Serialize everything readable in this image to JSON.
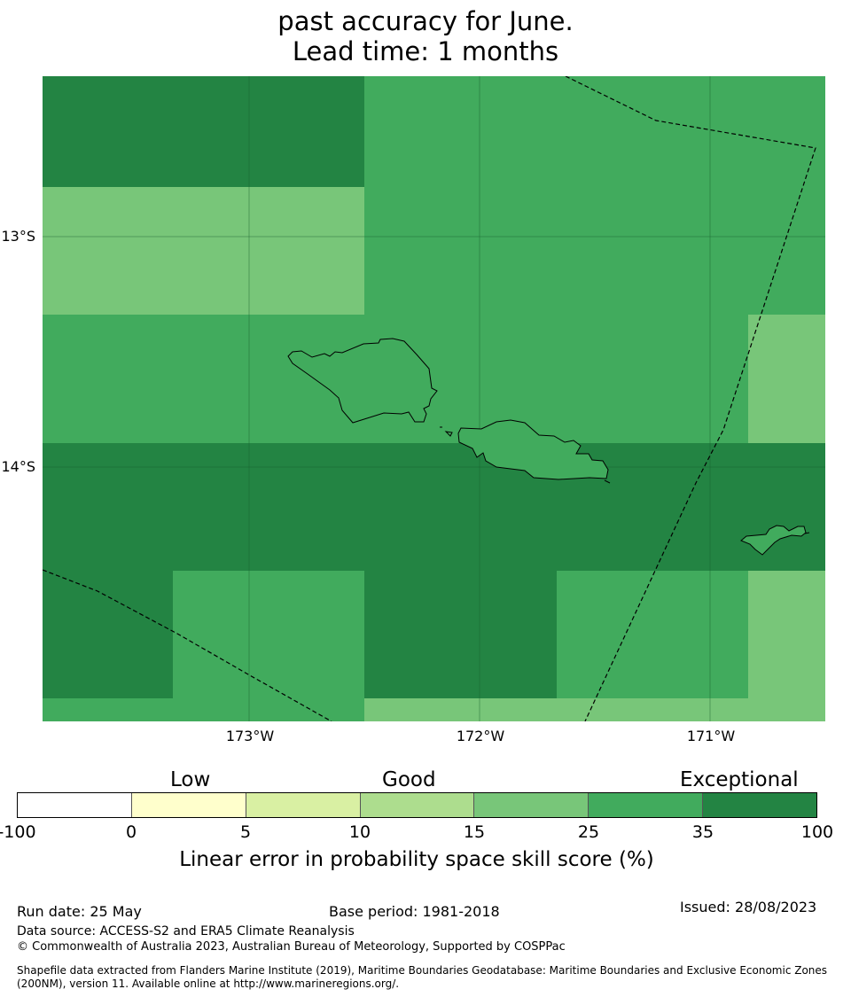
{
  "title": {
    "line1": "",
    "line2": "past accuracy for June.",
    "line3": "Lead time: 1 months"
  },
  "map": {
    "lat_labels": [
      "13°S",
      "14°S"
    ],
    "lon_labels": [
      "173°W",
      "172°W",
      "171°W"
    ],
    "colors": {
      "fill_25_35": "#41ab5d",
      "fill_35_100": "#238443",
      "fill_15_25": "#78c679",
      "coast": "#000000",
      "eez_boundary": "#000000"
    }
  },
  "legend": {
    "categories": [
      "Low",
      "Good",
      "Exceptional"
    ],
    "ticks": [
      "-100",
      "0",
      "5",
      "10",
      "15",
      "25",
      "35",
      "100"
    ],
    "colors": [
      "#ffffff",
      "#ffffcc",
      "#d9f0a3",
      "#addd8e",
      "#78c679",
      "#41ab5d",
      "#238443"
    ],
    "label": "Linear error in probability space skill score (%)"
  },
  "footer": {
    "run_date": "Run date: 25 May",
    "base_period": "Base period: 1981-2018",
    "issued": "Issued: 28/08/2023",
    "data_source": "Data source: ACCESS-S2 and ERA5 Climate Reanalysis",
    "copyright": "© Commonwealth of Australia 2023, Australian Bureau of Meteorology, Supported by COSPPac",
    "shapefile_line1": "Shapefile data extracted from Flanders Marine Institute (2019), Maritime Boundaries Geodatabase: Maritime Boundaries and Exclusive Economic Zones",
    "shapefile_line2": "(200NM), version 11. Available online at http://www.marineregions.org/."
  }
}
